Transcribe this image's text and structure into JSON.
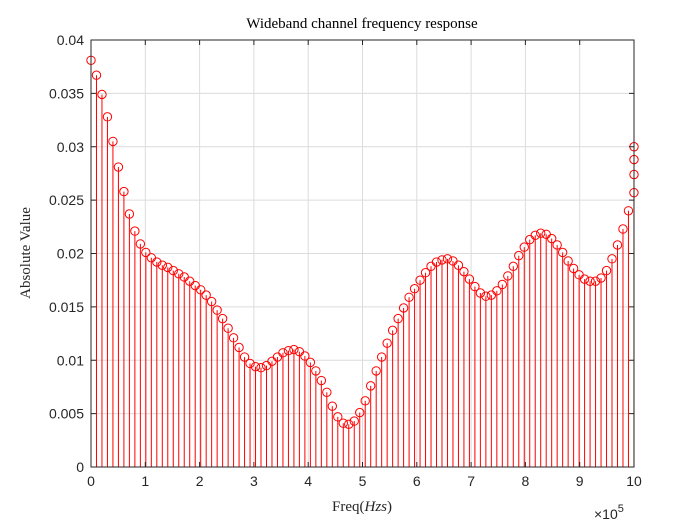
{
  "chart_data": {
    "type": "stem",
    "title": "Wideband channel frequency response",
    "xlabel": "Freq(Hzs)",
    "xlabel_prefix": "Freq(",
    "xlabel_var": "Hzs",
    "xlabel_suffix": ")",
    "ylabel": "Absolute Value",
    "x_scale_exponent_label": "×10",
    "x_scale_exponent_power": "5",
    "xlim": [
      0,
      10
    ],
    "ylim": [
      0,
      0.04
    ],
    "xticks": [
      0,
      1,
      2,
      3,
      4,
      5,
      6,
      7,
      8,
      9,
      10
    ],
    "xtick_labels": [
      "0",
      "1",
      "2",
      "3",
      "4",
      "5",
      "6",
      "7",
      "8",
      "9",
      "10"
    ],
    "yticks": [
      0,
      0.005,
      0.01,
      0.015,
      0.02,
      0.025,
      0.03,
      0.035,
      0.04
    ],
    "ytick_labels": [
      "0",
      "0.005",
      "0.01",
      "0.015",
      "0.02",
      "0.025",
      "0.03",
      "0.035",
      "0.04"
    ],
    "grid": true,
    "x_start": 0,
    "x_step": 0.101,
    "marker": "circle",
    "color": "#ff0000",
    "values": [
      0.0381,
      0.0367,
      0.0349,
      0.0328,
      0.0305,
      0.0281,
      0.0258,
      0.0237,
      0.0221,
      0.0209,
      0.0201,
      0.0196,
      0.0192,
      0.0189,
      0.0187,
      0.0184,
      0.0181,
      0.0178,
      0.0174,
      0.017,
      0.0166,
      0.0161,
      0.0155,
      0.0147,
      0.0139,
      0.013,
      0.0121,
      0.0112,
      0.0103,
      0.0097,
      0.0094,
      0.0093,
      0.0095,
      0.0099,
      0.0103,
      0.0107,
      0.0109,
      0.011,
      0.0108,
      0.0104,
      0.0098,
      0.009,
      0.0081,
      0.007,
      0.0057,
      0.0047,
      0.0041,
      0.004,
      0.0043,
      0.0051,
      0.0062,
      0.0076,
      0.009,
      0.0103,
      0.0116,
      0.0128,
      0.0139,
      0.0149,
      0.0159,
      0.0167,
      0.0175,
      0.0182,
      0.0188,
      0.0192,
      0.0194,
      0.0195,
      0.0193,
      0.0189,
      0.0183,
      0.0176,
      0.0169,
      0.0163,
      0.016,
      0.0161,
      0.0165,
      0.0171,
      0.0179,
      0.0188,
      0.0198,
      0.0206,
      0.0213,
      0.0217,
      0.0219,
      0.0218,
      0.0214,
      0.0208,
      0.0201,
      0.0193,
      0.0186,
      0.018,
      0.0176,
      0.0174,
      0.0174,
      0.0177,
      0.0184,
      0.0195,
      0.0208,
      0.0223,
      0.024,
      0.0257,
      0.0274,
      0.0288,
      0.03
    ]
  }
}
